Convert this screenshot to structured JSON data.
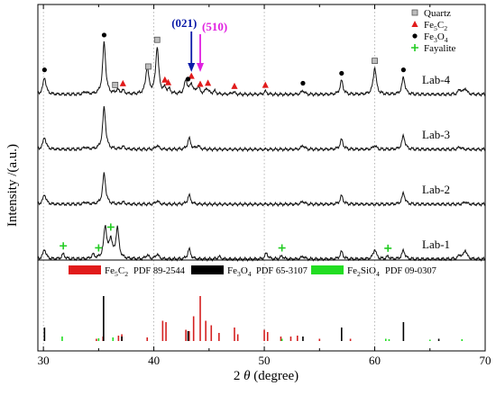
{
  "chart_data": {
    "type": "line",
    "xlabel_prefix": "2 ",
    "xlabel_theta": "θ",
    "xlabel_suffix": " (degree)",
    "ylabel": "Intensity /(a.u.)",
    "xlim": [
      29.5,
      70
    ],
    "xticks": [
      30,
      40,
      50,
      60,
      70
    ],
    "grid": "vertical dotted",
    "series": [
      {
        "name": "Lab-4",
        "offset": 3.0,
        "peaks": [
          [
            30.1,
            0.35
          ],
          [
            33.8,
            0.05
          ],
          [
            35.5,
            1.05
          ],
          [
            36.7,
            0.08
          ],
          [
            37.2,
            0.07
          ],
          [
            39.4,
            0.55
          ],
          [
            40.3,
            0.95
          ],
          [
            41.0,
            0.1
          ],
          [
            41.4,
            0.08
          ],
          [
            42.9,
            0.28
          ],
          [
            43.4,
            0.2
          ],
          [
            44.0,
            0.15
          ],
          [
            44.8,
            0.12
          ],
          [
            45.5,
            0.06
          ],
          [
            47.2,
            0.05
          ],
          [
            50.1,
            0.06
          ],
          [
            53.5,
            0.08
          ],
          [
            57.0,
            0.28
          ],
          [
            60.0,
            0.55
          ],
          [
            62.6,
            0.35
          ],
          [
            67.7,
            0.1
          ],
          [
            68.2,
            0.12
          ]
        ]
      },
      {
        "name": "Lab-3",
        "offset": 2.0,
        "peaks": [
          [
            30.1,
            0.25
          ],
          [
            33.8,
            0.04
          ],
          [
            35.5,
            0.85
          ],
          [
            37.2,
            0.05
          ],
          [
            40.3,
            0.08
          ],
          [
            43.2,
            0.22
          ],
          [
            44.0,
            0.07
          ],
          [
            53.5,
            0.08
          ],
          [
            57.0,
            0.2
          ],
          [
            60.0,
            0.08
          ],
          [
            62.6,
            0.28
          ],
          [
            67.7,
            0.05
          ]
        ]
      },
      {
        "name": "Lab-2",
        "offset": 1.0,
        "peaks": [
          [
            30.1,
            0.2
          ],
          [
            33.8,
            0.04
          ],
          [
            35.5,
            0.62
          ],
          [
            37.2,
            0.04
          ],
          [
            40.3,
            0.07
          ],
          [
            43.2,
            0.18
          ],
          [
            53.5,
            0.06
          ],
          [
            57.0,
            0.17
          ],
          [
            62.6,
            0.23
          ],
          [
            68.2,
            0.05
          ]
        ]
      },
      {
        "name": "Lab-1",
        "offset": 0.0,
        "peaks": [
          [
            30.1,
            0.2
          ],
          [
            31.8,
            0.1
          ],
          [
            34.5,
            0.08
          ],
          [
            35.6,
            0.65
          ],
          [
            36.1,
            0.38
          ],
          [
            36.7,
            0.62
          ],
          [
            39.4,
            0.08
          ],
          [
            40.3,
            0.1
          ],
          [
            43.2,
            0.2
          ],
          [
            45.9,
            0.05
          ],
          [
            50.2,
            0.12
          ],
          [
            51.6,
            0.06
          ],
          [
            53.5,
            0.06
          ],
          [
            57.0,
            0.15
          ],
          [
            60.0,
            0.2
          ],
          [
            61.2,
            0.05
          ],
          [
            62.6,
            0.18
          ],
          [
            67.7,
            0.08
          ],
          [
            68.2,
            0.18
          ]
        ]
      }
    ],
    "markers": {
      "Quartz": [
        36.5,
        39.5,
        40.3,
        60.0
      ],
      "Fe5C2": [
        37.2,
        41.0,
        41.3,
        43.4,
        44.2,
        44.9,
        47.3,
        50.1
      ],
      "Fe3O4": [
        30.1,
        35.5,
        43.1,
        53.5,
        57.0,
        62.6
      ],
      "Fayalite": [
        31.8,
        35.0,
        36.1,
        51.6,
        61.2
      ]
    },
    "annotations": [
      {
        "text": "(021)",
        "x": 43.4,
        "color": "#0b1ba8"
      },
      {
        "text": "(510)",
        "x": 44.2,
        "color": "#e020e0"
      }
    ],
    "legend": {
      "placement": "top-right",
      "entries": [
        {
          "label": "Quartz",
          "symbol": "square",
          "color": "#aaaaaa"
        },
        {
          "label": "Fe5C2",
          "sub": [
            "5",
            "2"
          ],
          "base": [
            "Fe",
            "C"
          ],
          "symbol": "triangle",
          "color": "#e11b1b"
        },
        {
          "label": "Fe3O4",
          "sub": [
            "3",
            "4"
          ],
          "base": [
            "Fe",
            "O"
          ],
          "symbol": "circle",
          "color": "#000000"
        },
        {
          "label": "Fayalite",
          "symbol": "plus",
          "color": "#22cc22"
        }
      ]
    },
    "reference": {
      "legend": [
        {
          "label": "Fe5C2",
          "base": [
            "Fe",
            "C"
          ],
          "sub": [
            "5",
            "2"
          ],
          "pdf": "PDF 89-2544",
          "color": "#e11b1b"
        },
        {
          "label": "Fe3O4",
          "base": [
            "Fe",
            "O"
          ],
          "sub": [
            "3",
            "4"
          ],
          "pdf": "PDF 65-3107",
          "color": "#000000"
        },
        {
          "label": "Fe2SiO4",
          "base": [
            "Fe",
            "SiO"
          ],
          "sub": [
            "2",
            "4"
          ],
          "pdf": "PDF 09-0307",
          "color": "#22dd22"
        }
      ],
      "Fe5C2": [
        [
          34.8,
          0.05
        ],
        [
          35.4,
          0.1
        ],
        [
          36.8,
          0.12
        ],
        [
          37.1,
          0.15
        ],
        [
          39.4,
          0.08
        ],
        [
          40.8,
          0.45
        ],
        [
          41.1,
          0.42
        ],
        [
          42.9,
          0.25
        ],
        [
          43.2,
          0.22
        ],
        [
          43.6,
          0.55
        ],
        [
          44.2,
          1.0
        ],
        [
          44.7,
          0.45
        ],
        [
          45.2,
          0.35
        ],
        [
          45.9,
          0.18
        ],
        [
          47.3,
          0.3
        ],
        [
          47.6,
          0.15
        ],
        [
          50.0,
          0.25
        ],
        [
          50.3,
          0.2
        ],
        [
          51.5,
          0.1
        ],
        [
          52.4,
          0.1
        ],
        [
          53.0,
          0.12
        ],
        [
          55.0,
          0.05
        ],
        [
          57.8,
          0.05
        ]
      ],
      "Fe3O4": [
        [
          30.1,
          0.3
        ],
        [
          35.45,
          1.0
        ],
        [
          37.1,
          0.1
        ],
        [
          43.1,
          0.22
        ],
        [
          53.5,
          0.1
        ],
        [
          57.0,
          0.3
        ],
        [
          62.6,
          0.42
        ],
        [
          65.8,
          0.05
        ]
      ],
      "Fe2SiO4": [
        [
          31.7,
          0.1
        ],
        [
          35.0,
          0.06
        ],
        [
          36.3,
          0.08
        ],
        [
          51.6,
          0.05
        ],
        [
          61.0,
          0.05
        ],
        [
          61.3,
          0.04
        ],
        [
          65.0,
          0.03
        ],
        [
          67.9,
          0.04
        ]
      ]
    }
  }
}
